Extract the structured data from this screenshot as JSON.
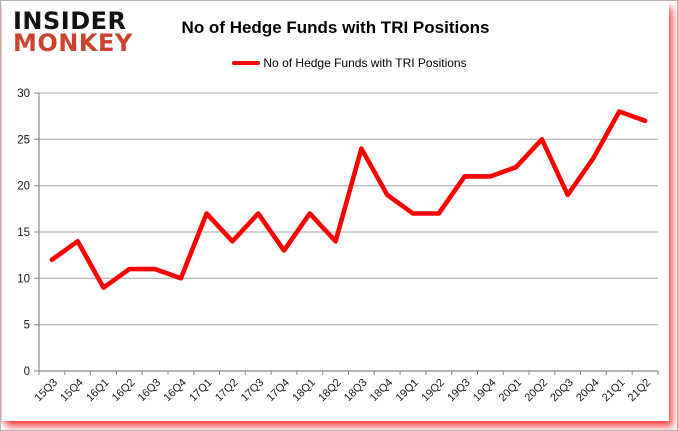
{
  "logo": {
    "line1": "INSIDER",
    "line2": "MONKEY"
  },
  "legend": {
    "label": "No of Hedge Funds with TRI Positions"
  },
  "colors": {
    "line": "#fe0000",
    "grid": "#a6a6a6",
    "axis": "#898989",
    "text": "#1a1a1a",
    "logo_black": "#121212",
    "logo_red": "#c9432f",
    "glow": "#f80000",
    "background": "#ffffff"
  },
  "chart_data": {
    "type": "line",
    "title": "No of Hedge Funds with TRI Positions",
    "categories": [
      "15Q3",
      "15Q4",
      "16Q1",
      "16Q2",
      "16Q3",
      "16Q4",
      "17Q1",
      "17Q2",
      "17Q3",
      "17Q4",
      "18Q1",
      "18Q2",
      "18Q3",
      "18Q4",
      "19Q1",
      "19Q2",
      "19Q3",
      "19Q4",
      "20Q1",
      "20Q2",
      "20Q3",
      "20Q4",
      "21Q1",
      "21Q2"
    ],
    "series": [
      {
        "name": "No of Hedge Funds with TRI Positions",
        "color": "#fe0000",
        "values": [
          12,
          14,
          9,
          11,
          11,
          10,
          17,
          14,
          17,
          13,
          17,
          14,
          24,
          19,
          17,
          17,
          21,
          21,
          22,
          25,
          19,
          23,
          28,
          27
        ]
      }
    ],
    "xlabel": "",
    "ylabel": "",
    "ylim": [
      0,
      30
    ],
    "yticks": [
      0,
      5,
      10,
      15,
      20,
      25,
      30
    ],
    "grid": true,
    "legend_position": "top-center"
  }
}
